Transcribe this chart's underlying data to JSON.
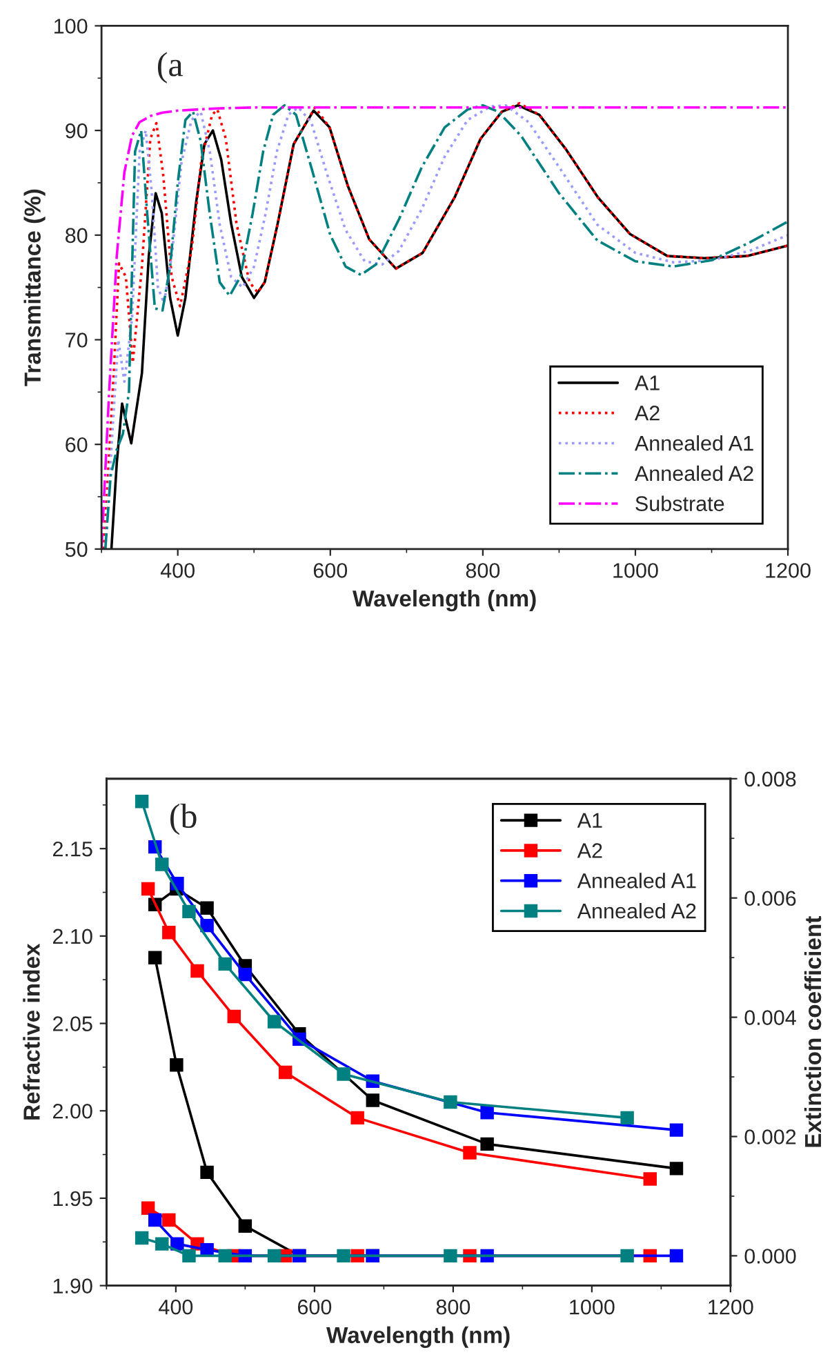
{
  "chart_data": [
    {
      "type": "line",
      "xlabel": "Wavelength (nm)",
      "ylabel": "Transmittance (%)",
      "annotations": [
        "(a"
      ],
      "xlim": [
        300,
        1200
      ],
      "ylim": [
        50,
        100
      ],
      "xticks": [
        400,
        600,
        800,
        1000,
        1200
      ],
      "yticks": [
        50,
        60,
        70,
        80,
        90,
        100
      ],
      "legend": "bottom right",
      "grid": false,
      "marker": "none",
      "series": [
        {
          "name": "A1",
          "color": "#000000",
          "line_style": "solid",
          "x": [
            313,
            320,
            327,
            339,
            353,
            362,
            371,
            379,
            390,
            400,
            410,
            424,
            435,
            446,
            457,
            470,
            484,
            500,
            514,
            531,
            552,
            578,
            599,
            623,
            651,
            686,
            721,
            763,
            797,
            825,
            846,
            874,
            909,
            951,
            993,
            1042,
            1090,
            1146,
            1200
          ],
          "values": [
            50,
            58.2,
            63.9,
            60.1,
            66.8,
            78,
            84.0,
            82.1,
            74,
            70.4,
            74,
            83.1,
            88.7,
            90,
            87.2,
            81.1,
            76.0,
            74.0,
            75.5,
            81.1,
            88.7,
            91.9,
            90.3,
            84.7,
            79.6,
            76.8,
            78.3,
            83.6,
            89.2,
            91.8,
            92.4,
            91.5,
            88.2,
            83.6,
            80.1,
            78.0,
            77.8,
            78.0,
            79.0
          ]
        },
        {
          "name": "A2",
          "color": "#ff0000",
          "line_style": "dotted",
          "x": [
            303,
            316,
            323,
            332,
            341,
            353,
            364,
            372,
            381,
            392,
            403,
            418,
            431,
            445,
            452,
            463,
            477,
            494,
            505,
            514,
            531,
            552,
            580,
            599,
            623,
            651,
            686,
            721,
            763,
            797,
            825,
            848,
            874,
            909,
            951,
            993,
            1042,
            1090,
            1146,
            1200
          ],
          "values": [
            50,
            66.8,
            77.3,
            76,
            67.8,
            77,
            89.2,
            90.7,
            85.7,
            76,
            73.2,
            78.5,
            87.2,
            91.5,
            92.0,
            89.2,
            81.1,
            75.5,
            74.5,
            75.5,
            81.1,
            88.7,
            92.2,
            90.3,
            84.7,
            79.6,
            76.8,
            78.3,
            83.6,
            89.2,
            91.8,
            92.6,
            91.5,
            88.2,
            83.6,
            80.1,
            78.0,
            77.8,
            78.0,
            79.0
          ]
        },
        {
          "name": "Annealed A1",
          "color": "#9999ff",
          "line_style": "dotted",
          "x": [
            305,
            315,
            322,
            330,
            340,
            350,
            358,
            366,
            374,
            382,
            392,
            405,
            418,
            430,
            442,
            455,
            470,
            485,
            500,
            515,
            530,
            545,
            558,
            575,
            595,
            620,
            645,
            668,
            690,
            720,
            750,
            780,
            810,
            830,
            860,
            900,
            950,
            1000,
            1050,
            1100,
            1150,
            1200
          ],
          "values": [
            50,
            62,
            70,
            66,
            72,
            88,
            90,
            84,
            75,
            73.5,
            78,
            87,
            91,
            91.8,
            88,
            81,
            76,
            75,
            77,
            82,
            88,
            91.5,
            92.2,
            90.8,
            86,
            80.5,
            77.5,
            77.2,
            78.5,
            82.5,
            87.5,
            91,
            92.3,
            92.4,
            90.8,
            86.5,
            81,
            78.3,
            77.4,
            77.6,
            78.5,
            80
          ]
        },
        {
          "name": "Annealed A2",
          "color": "#008080",
          "line_style": "dashdot",
          "x": [
            305,
            312,
            320,
            328,
            336,
            344,
            352,
            360,
            370,
            380,
            390,
            400,
            410,
            420,
            430,
            442,
            455,
            468,
            482,
            498,
            512,
            525,
            540,
            555,
            575,
            600,
            620,
            640,
            660,
            690,
            720,
            750,
            780,
            800,
            820,
            850,
            900,
            950,
            1000,
            1050,
            1100,
            1150,
            1200
          ],
          "values": [
            50,
            57,
            59.5,
            61,
            65,
            88,
            90,
            82,
            73,
            72.8,
            77,
            85,
            91,
            91.8,
            89,
            82,
            75.5,
            74.2,
            76,
            82,
            88,
            91.5,
            92.4,
            91.5,
            86.5,
            80,
            77,
            76.2,
            77.2,
            81.5,
            86.5,
            90.3,
            92,
            92.4,
            91.8,
            89.5,
            84,
            79.5,
            77.5,
            77,
            77.6,
            79.3,
            81.3
          ]
        },
        {
          "name": "Substrate",
          "color": "#ff00ff",
          "line_style": "dashdot",
          "x": [
            300,
            310,
            320,
            330,
            340,
            350,
            365,
            380,
            400,
            450,
            500,
            600,
            800,
            1000,
            1200
          ],
          "values": [
            50,
            65,
            78,
            86,
            89.5,
            90.8,
            91.4,
            91.7,
            91.9,
            92.1,
            92.2,
            92.2,
            92.2,
            92.2,
            92.2
          ]
        }
      ]
    },
    {
      "type": "line",
      "xlabel": "Wavelength (nm)",
      "ylabel": "Refractive index",
      "y2label": "Extinction coefficient",
      "annotations": [
        "(b"
      ],
      "xlim": [
        300,
        1200
      ],
      "ylim": [
        1.9,
        2.19
      ],
      "y2lim": [
        -0.0005,
        0.008
      ],
      "xticks": [
        400,
        600,
        800,
        1000,
        1200
      ],
      "yticks": [
        {
          "value": 1.9,
          "label": "1.90"
        },
        {
          "value": 1.95,
          "label": "1.95"
        },
        {
          "value": 2.0,
          "label": "2.00"
        },
        {
          "value": 2.05,
          "label": "2.05"
        },
        {
          "value": 2.1,
          "label": "2.10"
        },
        {
          "value": 2.15,
          "label": "2.15"
        }
      ],
      "y2ticks": [
        {
          "value": 0,
          "label": "0.000"
        },
        {
          "value": 0.002,
          "label": "0.002"
        },
        {
          "value": 0.004,
          "label": "0.004"
        },
        {
          "value": 0.006,
          "label": "0.006"
        },
        {
          "value": 0.008,
          "label": "0.008"
        }
      ],
      "legend": "top right",
      "grid": false,
      "marker": "square",
      "line_style": "solid",
      "series": [
        {
          "name": "A1",
          "color": "#000000",
          "x": [
            370,
            401,
            445,
            500,
            578,
            684,
            849,
            1122
          ],
          "values": [
            2.118,
            2.127,
            2.116,
            2.083,
            2.044,
            2.006,
            1.981,
            1.967
          ]
        },
        {
          "name": "A2",
          "color": "#ff0000",
          "x": [
            360,
            390,
            431,
            484,
            558,
            662,
            824,
            1084
          ],
          "values": [
            2.127,
            2.102,
            2.08,
            2.054,
            2.022,
            1.996,
            1.976,
            1.961
          ]
        },
        {
          "name": "Annealed A1",
          "color": "#0000ff",
          "x": [
            370,
            402,
            445,
            500,
            578,
            684,
            849,
            1122
          ],
          "values": [
            2.151,
            2.13,
            2.106,
            2.078,
            2.041,
            2.017,
            1.999,
            1.989
          ]
        },
        {
          "name": "Annealed A2",
          "color": "#008080",
          "x": [
            351,
            380,
            419,
            471,
            542,
            642,
            796,
            1051
          ],
          "values": [
            2.177,
            2.141,
            2.114,
            2.084,
            2.051,
            2.021,
            2.005,
            1.996
          ]
        },
        {
          "color": "#000000",
          "axis": "y2",
          "x": [
            370,
            401,
            445,
            500,
            578,
            684
          ],
          "values": [
            0.005,
            0.0032,
            0.0014,
            0.0005,
            0,
            0
          ]
        },
        {
          "color": "#ff0000",
          "axis": "y2",
          "x": [
            360,
            390,
            431,
            484,
            558,
            662,
            824,
            1084
          ],
          "values": [
            0.0008,
            0.0006,
            0.0002,
            0,
            0,
            0,
            0,
            0
          ]
        },
        {
          "color": "#0000ff",
          "axis": "y2",
          "x": [
            370,
            402,
            445,
            500,
            578,
            684,
            849,
            1122
          ],
          "values": [
            0.0006,
            0.0002,
            0.0001,
            0,
            0,
            0,
            0,
            0
          ]
        },
        {
          "color": "#008080",
          "axis": "y2",
          "x": [
            351,
            380,
            419,
            471,
            542,
            642,
            796,
            1051
          ],
          "values": [
            0.0003,
            0.0002,
            0,
            0,
            0,
            0,
            0,
            0
          ]
        }
      ]
    }
  ]
}
